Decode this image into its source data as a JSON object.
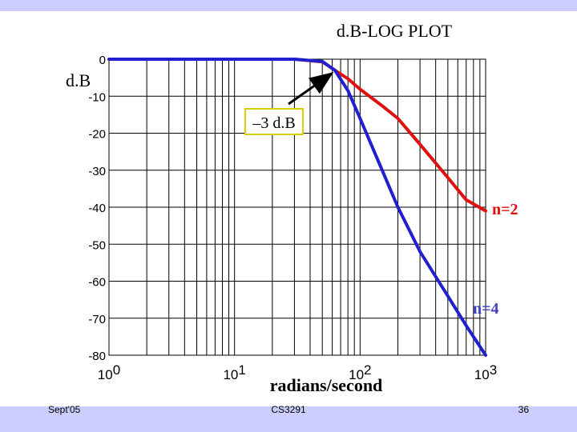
{
  "slide": {
    "footer_left": "Sept'05",
    "footer_center": "CS3291",
    "footer_right": "36"
  },
  "colors": {
    "band": "#ccccff",
    "n2_curve": "#e01010",
    "n4_curve": "#2020d0",
    "callout_border": "#d8d000",
    "callout_fill": "#ffffff"
  },
  "chart_data": {
    "type": "line",
    "title": "d.B-LOG PLOT",
    "ylabel": "d.B",
    "xlabel": "radians/second",
    "x_scale": "log",
    "xlim": [
      1,
      1000
    ],
    "ylim": [
      -80,
      0
    ],
    "grid": true,
    "x_ticks": [
      {
        "value": 1,
        "base": "10",
        "exp": "0"
      },
      {
        "value": 10,
        "base": "10",
        "exp": "1"
      },
      {
        "value": 100,
        "base": "10",
        "exp": "2"
      },
      {
        "value": 1000,
        "base": "10",
        "exp": "3"
      }
    ],
    "y_ticks": [
      0,
      -10,
      -20,
      -30,
      -40,
      -50,
      -60,
      -70,
      -80
    ],
    "annotation": {
      "text": "–3 d.B",
      "x": 63,
      "y": -3
    },
    "series": [
      {
        "name": "n=2",
        "color": "#e01010",
        "x": [
          1,
          10,
          30,
          50,
          63,
          80,
          100,
          150,
          200,
          300,
          500,
          700,
          1000
        ],
        "y": [
          0,
          0,
          0,
          -0.7,
          -3,
          -5.3,
          -8.1,
          -12.6,
          -16.0,
          -23.0,
          -32.0,
          -38.0,
          -41.0
        ]
      },
      {
        "name": "n=4",
        "color": "#2020d0",
        "x": [
          1,
          10,
          30,
          50,
          63,
          80,
          100,
          150,
          200,
          300,
          500,
          700,
          1000
        ],
        "y": [
          0,
          0,
          0,
          -0.6,
          -3,
          -8.5,
          -16.0,
          -30.0,
          -40.0,
          -52.0,
          -64.0,
          -72.0,
          -80.0
        ]
      }
    ]
  }
}
